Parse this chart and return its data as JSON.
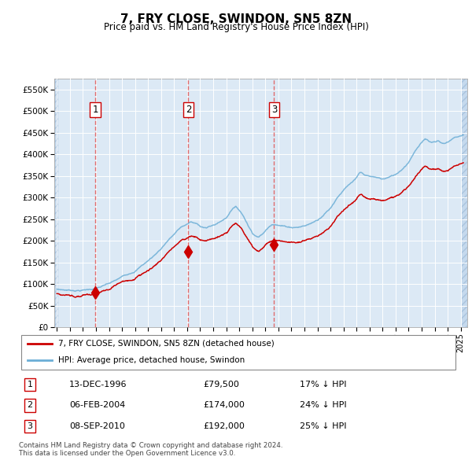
{
  "title": "7, FRY CLOSE, SWINDON, SN5 8ZN",
  "subtitle": "Price paid vs. HM Land Registry's House Price Index (HPI)",
  "background_color": "#ffffff",
  "plot_bg_color": "#dce9f5",
  "hpi_color": "#6baed6",
  "price_color": "#cc0000",
  "sale_marker_color": "#cc0000",
  "vline_color": "#e05555",
  "ylim": [
    0,
    575000
  ],
  "yticks": [
    0,
    50000,
    100000,
    150000,
    200000,
    250000,
    300000,
    350000,
    400000,
    450000,
    500000,
    550000
  ],
  "ytick_labels": [
    "£0",
    "£50K",
    "£100K",
    "£150K",
    "£200K",
    "£250K",
    "£300K",
    "£350K",
    "£400K",
    "£450K",
    "£500K",
    "£550K"
  ],
  "sale_dates": [
    1996.95,
    2004.09,
    2010.67
  ],
  "sale_prices": [
    79500,
    174000,
    192000
  ],
  "sale_labels": [
    "1",
    "2",
    "3"
  ],
  "legend_items": [
    {
      "label": "7, FRY CLOSE, SWINDON, SN5 8ZN (detached house)",
      "color": "#cc0000"
    },
    {
      "label": "HPI: Average price, detached house, Swindon",
      "color": "#6baed6"
    }
  ],
  "table_rows": [
    {
      "num": "1",
      "date": "13-DEC-1996",
      "price": "£79,500",
      "hpi": "17% ↓ HPI"
    },
    {
      "num": "2",
      "date": "06-FEB-2004",
      "price": "£174,000",
      "hpi": "24% ↓ HPI"
    },
    {
      "num": "3",
      "date": "08-SEP-2010",
      "price": "£192,000",
      "hpi": "25% ↓ HPI"
    }
  ],
  "footnote": "Contains HM Land Registry data © Crown copyright and database right 2024.\nThis data is licensed under the Open Government Licence v3.0.",
  "xlim_start": 1993.8,
  "xlim_end": 2025.5,
  "hatch_left_end": 1994.08,
  "hatch_right_start": 2025.08
}
